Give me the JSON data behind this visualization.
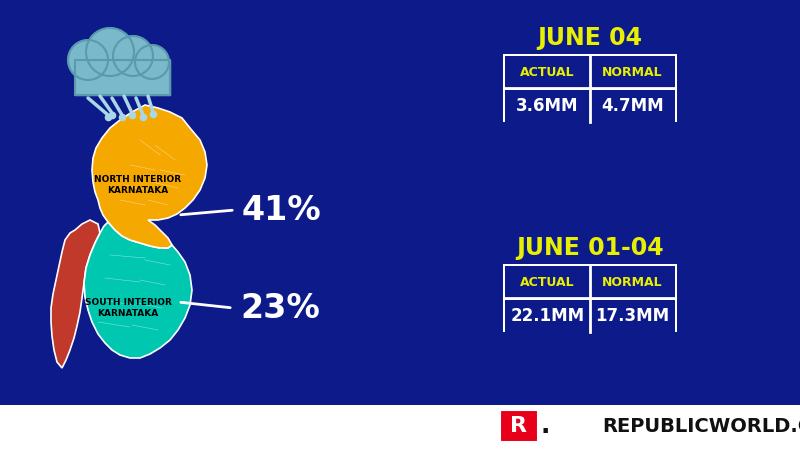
{
  "bg_color": "#0d1a8a",
  "yellow_color": "#e8f000",
  "white_color": "#ffffff",
  "table1_title": "JUNE 04",
  "table1_headers": [
    "ACTUAL",
    "NORMAL"
  ],
  "table1_values": [
    "3.6MM",
    "4.7MM"
  ],
  "table2_title": "JUNE 01-04",
  "table2_headers": [
    "ACTUAL",
    "NORMAL"
  ],
  "table2_values": [
    "22.1MM",
    "17.3MM"
  ],
  "region1_label": "NORTH INTERIOR\nKARNATAKA",
  "region1_pct": "41%",
  "region2_label": "SOUTH INTERIOR\nKARNATAKA",
  "region2_pct": "23%",
  "north_color": "#f5a800",
  "south_color": "#00c8b0",
  "coastal_color": "#c0392b",
  "cloud_body_color": "#7ab8cc",
  "cloud_dark_color": "#5a9aaa",
  "rain_color": "#a8d8e8",
  "logo_r_color": "#e8001a",
  "logo_text_color": "#111111",
  "brand_text": "REPUBLICWORLD.COM",
  "table_border_color": "#ffffff",
  "table_header_color": "#e8f000",
  "table_value_color": "#ffffff",
  "table_bg_color": "#0d1a8a",
  "bottom_bar_color": "#ffffff",
  "map_outline_color": "#ffffff",
  "arrow_color": "#ffffff",
  "pct_color": "#ffffff",
  "label_color": "#000000"
}
